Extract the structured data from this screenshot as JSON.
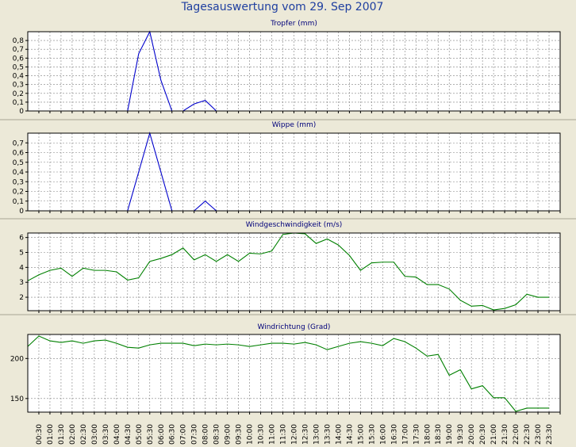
{
  "page": {
    "title": "Tagesauswertung vom 29. Sep 2007"
  },
  "colors": {
    "background": "#ece9d8",
    "plot_background": "#ffffff",
    "rain_series": "#0000cc",
    "wind_series": "#008000",
    "title_text": "#1f3fa0",
    "panel_title_text": "#00007a",
    "grid": "#808080"
  },
  "x_ticks": [
    "00:30",
    "01:00",
    "01:30",
    "02:00",
    "02:30",
    "03:00",
    "03:30",
    "04:00",
    "04:30",
    "05:00",
    "05:30",
    "06:00",
    "06:30",
    "07:00",
    "07:30",
    "08:00",
    "08:30",
    "09:00",
    "09:30",
    "10:00",
    "10:30",
    "11:00",
    "11:30",
    "12:00",
    "12:30",
    "13:00",
    "13:30",
    "14:00",
    "14:30",
    "15:00",
    "15:30",
    "16:00",
    "16:30",
    "17:00",
    "17:30",
    "18:00",
    "18:30",
    "19:00",
    "19:30",
    "20:00",
    "20:30",
    "21:00",
    "21:30",
    "22:00",
    "22:30",
    "23:00",
    "23:30"
  ],
  "chart_data": [
    {
      "type": "line",
      "title": "Tropfer (mm)",
      "x_start": "00:00",
      "x_step_minutes": 30,
      "ylim": [
        0,
        0.9
      ],
      "y_ticks": [
        "0",
        "0,1",
        "0,2",
        "0,3",
        "0,4",
        "0,5",
        "0,6",
        "0,7",
        "0,8"
      ],
      "grid": true,
      "series": [
        {
          "values": [
            0,
            0,
            0,
            0,
            0,
            0,
            0,
            0,
            0,
            0,
            0.65,
            0.9,
            0.35,
            0,
            0,
            0.08,
            0.12,
            0,
            0,
            0,
            0,
            0,
            0,
            0,
            0,
            0,
            0,
            0,
            0,
            0,
            0,
            0,
            0,
            0,
            0,
            0,
            0,
            0,
            0,
            0,
            0,
            0,
            0,
            0,
            0,
            0,
            0,
            0
          ]
        }
      ]
    },
    {
      "type": "line",
      "title": "Wippe (mm)",
      "x_start": "00:00",
      "x_step_minutes": 30,
      "ylim": [
        0,
        0.8
      ],
      "y_ticks": [
        "0",
        "0,1",
        "0,2",
        "0,3",
        "0,4",
        "0,5",
        "0,6",
        "0,7"
      ],
      "grid": true,
      "series": [
        {
          "values": [
            0,
            0,
            0,
            0,
            0,
            0,
            0,
            0,
            0,
            0,
            0.4,
            0.8,
            0.4,
            0,
            0,
            0,
            0.1,
            0,
            0,
            0,
            0,
            0,
            0,
            0,
            0,
            0,
            0,
            0,
            0,
            0,
            0,
            0,
            0,
            0,
            0,
            0,
            0,
            0,
            0,
            0,
            0,
            0,
            0,
            0,
            0,
            0,
            0,
            0
          ]
        }
      ]
    },
    {
      "type": "line",
      "title": "Windgeschwindigkeit (m/s)",
      "x_start": "00:00",
      "x_step_minutes": 30,
      "ylim": [
        1.1,
        6.3
      ],
      "y_ticks": [
        "2",
        "3",
        "4",
        "5",
        "6"
      ],
      "grid": true,
      "series": [
        {
          "values": [
            3.1,
            3.5,
            3.8,
            3.95,
            3.4,
            3.95,
            3.8,
            3.8,
            3.7,
            3.15,
            3.3,
            4.4,
            4.6,
            4.85,
            5.3,
            4.5,
            4.85,
            4.4,
            4.85,
            4.4,
            4.95,
            4.9,
            5.1,
            6.2,
            6.3,
            6.25,
            5.6,
            5.9,
            5.5,
            4.8,
            3.8,
            4.3,
            4.35,
            4.35,
            3.4,
            3.35,
            2.85,
            2.85,
            2.55,
            1.8,
            1.4,
            1.45,
            1.15,
            1.25,
            1.5,
            2.2,
            2.0,
            2.0
          ]
        }
      ]
    },
    {
      "type": "line",
      "title": "Windrichtung (Grad)",
      "x_start": "00:00",
      "x_step_minutes": 30,
      "ylim": [
        133,
        230
      ],
      "y_ticks": [
        "150",
        "200"
      ],
      "grid": true,
      "series": [
        {
          "values": [
            215,
            228,
            222,
            220,
            222,
            219,
            222,
            223,
            219,
            214,
            213,
            217,
            219,
            219,
            219,
            216,
            218,
            217,
            218,
            217,
            215,
            217,
            219,
            219,
            218,
            220,
            217,
            211,
            215,
            219,
            221,
            219,
            216,
            225,
            221,
            213,
            203,
            205,
            179,
            186,
            162,
            166,
            151,
            151,
            134,
            138,
            138,
            138
          ]
        }
      ]
    }
  ]
}
